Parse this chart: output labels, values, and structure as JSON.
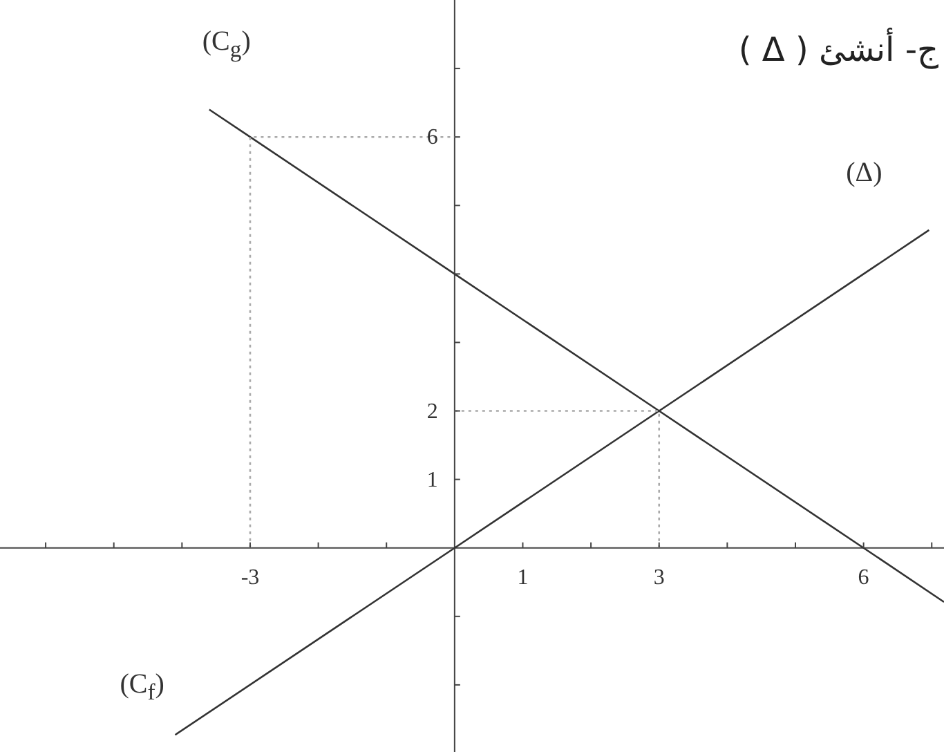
{
  "chart_data": {
    "type": "line",
    "title": "ج- أنشئ ( Δ )",
    "xlim": [
      -6.67,
      7.18
    ],
    "ylim": [
      -2.98,
      8.0
    ],
    "xticks": [
      {
        "value": -6,
        "label": null
      },
      {
        "value": -5,
        "label": null
      },
      {
        "value": -4,
        "label": null
      },
      -3,
      {
        "value": -2,
        "label": null
      },
      {
        "value": -1,
        "label": null
      },
      1,
      {
        "value": 2,
        "label": null
      },
      3,
      {
        "value": 4,
        "label": null
      },
      {
        "value": 5,
        "label": null
      },
      6,
      {
        "value": 7,
        "label": null
      }
    ],
    "yticks": [
      {
        "value": -2,
        "label": null
      },
      {
        "value": -1,
        "label": null
      },
      1,
      2,
      {
        "value": 3,
        "label": null
      },
      {
        "value": 4,
        "label": null
      },
      {
        "value": 5,
        "label": null
      },
      6,
      {
        "value": 7,
        "label": null
      }
    ],
    "grid": false,
    "legend": false,
    "marker": "none",
    "series": [
      {
        "name": "(Δ)",
        "color": "#333333",
        "x": [
          -4.1,
          0,
          3,
          6.96
        ],
        "values": [
          -2.73,
          0,
          2,
          4.64
        ]
      },
      {
        "name": "(C$_{g}$)",
        "color": "#333333",
        "x": [
          -3.6,
          -3,
          0,
          3,
          6,
          7.18
        ],
        "values": [
          6.4,
          6,
          4,
          2,
          0,
          -0.79
        ]
      },
      {
        "color": "#aaaaaa",
        "line_style": "dotted",
        "x": [
          -3,
          -3,
          0
        ],
        "values": [
          0,
          6,
          6
        ]
      },
      {
        "color": "#aaaaaa",
        "line_style": "dotted",
        "x": [
          0,
          3,
          3
        ],
        "values": [
          2,
          2,
          0
        ]
      }
    ],
    "annotations": [
      "(C$_{f}$)"
    ]
  }
}
